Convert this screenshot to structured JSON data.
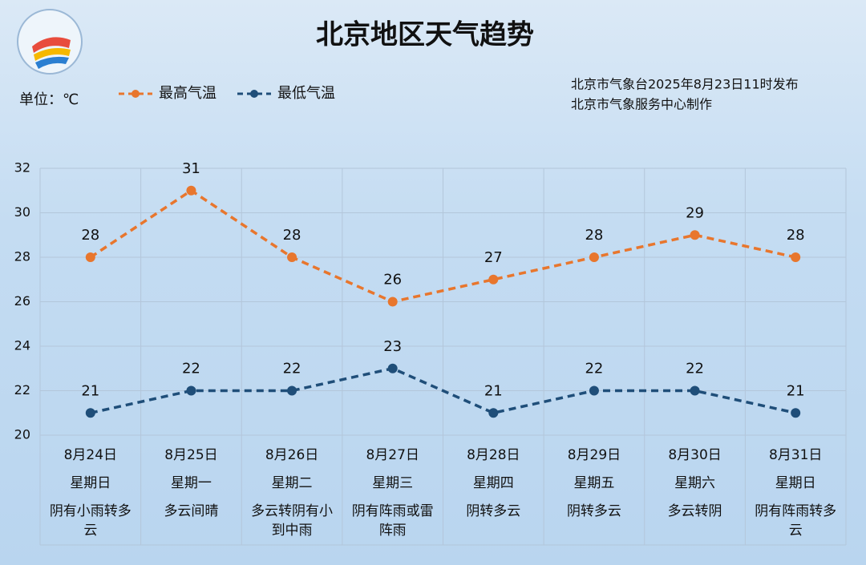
{
  "chart_data": {
    "type": "line",
    "title": "北京地区天气趋势",
    "unit_label": "单位：℃",
    "source": [
      "北京市气象台2025年8月23日11时发布",
      "北京市气象服务中心制作"
    ],
    "categories": [
      "8月24日",
      "8月25日",
      "8月26日",
      "8月27日",
      "8月28日",
      "8月29日",
      "8月30日",
      "8月31日"
    ],
    "weekdays": [
      "星期日",
      "星期一",
      "星期二",
      "星期三",
      "星期四",
      "星期五",
      "星期六",
      "星期日"
    ],
    "weather": [
      "阴有小雨转多云",
      "多云间晴",
      "多云转阴有小到中雨",
      "阴有阵雨或雷阵雨",
      "阴转多云",
      "阴转多云",
      "多云转阴",
      "阴有阵雨转多云"
    ],
    "series": [
      {
        "name": "最高气温",
        "color": "#e8762d",
        "values": [
          28,
          31,
          28,
          26,
          27,
          28,
          29,
          28
        ]
      },
      {
        "name": "最低气温",
        "color": "#1f4e79",
        "values": [
          21,
          22,
          22,
          23,
          21,
          22,
          22,
          21
        ]
      }
    ],
    "ylim": [
      20,
      32
    ],
    "yticks": [
      20,
      22,
      24,
      26,
      28,
      30,
      32
    ],
    "grid": true
  }
}
